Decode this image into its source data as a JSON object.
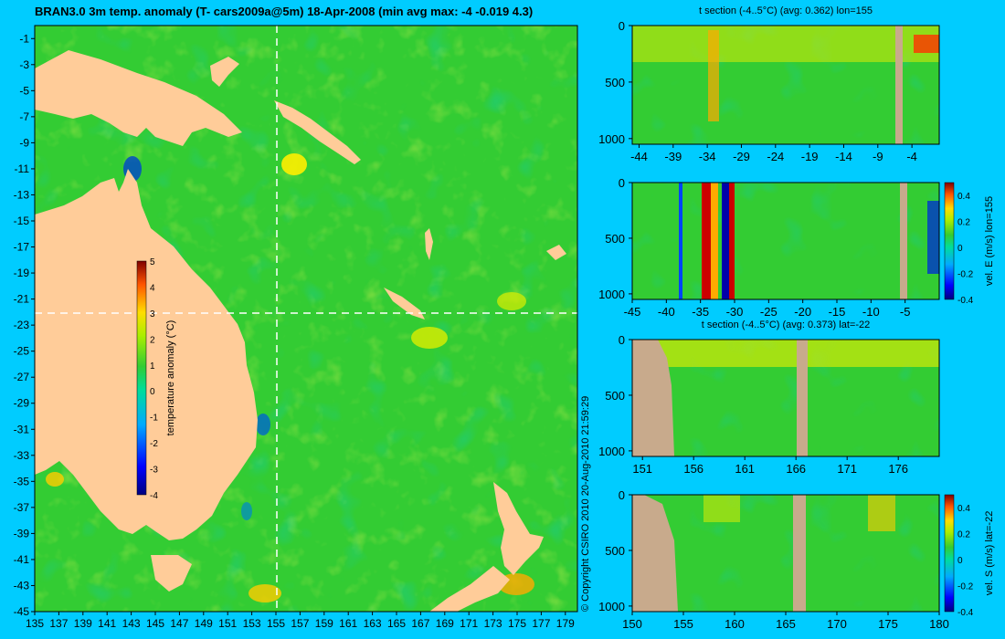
{
  "header": {
    "title": "BRAN3.0 3m temp. anomaly (T- cars2009a@5m) 18-Apr-2008 (min avg max: -4 -0.019 4.3)"
  },
  "copyright": "© Copyright CSIRO 2010   20-Aug-2010 21:59:29",
  "colors": {
    "background": "#00ccff",
    "land": "#ffcc99",
    "section_land": "#c8aa8c",
    "ocean_base": "#33cc33"
  },
  "chart_data": [
    {
      "type": "heatmap",
      "name": "surface-map",
      "title": "BRAN3.0 3m temp. anomaly (T- cars2009a@5m) 18-Apr-2008 (min avg max: -4 -0.019 4.3)",
      "xlim": [
        135,
        180
      ],
      "ylim": [
        -45,
        0
      ],
      "x_ticks": [
        "135",
        "137",
        "139",
        "141",
        "143",
        "145",
        "147",
        "149",
        "151",
        "153",
        "155",
        "157",
        "159",
        "161",
        "163",
        "165",
        "167",
        "169",
        "171",
        "173",
        "175",
        "177",
        "179"
      ],
      "y_ticks": [
        "-1",
        "-3",
        "-5",
        "-7",
        "-9",
        "-11",
        "-13",
        "-15",
        "-17",
        "-19",
        "-21",
        "-23",
        "-25",
        "-27",
        "-29",
        "-31",
        "-33",
        "-35",
        "-37",
        "-39",
        "-41",
        "-43",
        "-45"
      ],
      "section_lines": {
        "lon": 155,
        "lat": -22
      },
      "colorbar": {
        "label": "temperature anomaly (°C)",
        "range": [
          -4,
          5
        ],
        "ticks": [
          "5",
          "4",
          "3",
          "2",
          "1",
          "0",
          "-1",
          "-2",
          "-3",
          "-4"
        ]
      },
      "stats": {
        "min": -4,
        "avg": -0.019,
        "max": 4.3
      }
    },
    {
      "type": "heatmap",
      "name": "t-section-lon155",
      "title": "t section (-4..5°C) (avg: 0.362) lon=155",
      "xlim": [
        -45,
        0
      ],
      "ylim": [
        1050,
        0
      ],
      "x_ticks": [
        "-44",
        "-39",
        "-34",
        "-29",
        "-24",
        "-19",
        "-14",
        "-9",
        "-4"
      ],
      "y_ticks": [
        "0",
        "500",
        "1000"
      ]
    },
    {
      "type": "heatmap",
      "name": "vel-e-section-lon155",
      "title": "",
      "xlim": [
        -45,
        0
      ],
      "ylim": [
        1050,
        0
      ],
      "x_ticks": [
        "-45",
        "-40",
        "-35",
        "-30",
        "-25",
        "-20",
        "-15",
        "-10",
        "-5"
      ],
      "y_ticks": [
        "0",
        "500",
        "1000"
      ],
      "colorbar": {
        "label": "vel. E (m/s) lon=155",
        "range": [
          -0.4,
          0.5
        ],
        "ticks": [
          "0.4",
          "0.2",
          "0",
          "-0.2",
          "-0.4"
        ]
      }
    },
    {
      "type": "heatmap",
      "name": "t-section-lat-22",
      "title": "t section (-4..5°C) (avg: 0.373) lat=-22",
      "xlim": [
        150,
        180
      ],
      "ylim": [
        1050,
        0
      ],
      "x_ticks": [
        "151",
        "156",
        "161",
        "166",
        "171",
        "176"
      ],
      "y_ticks": [
        "0",
        "500",
        "1000"
      ]
    },
    {
      "type": "heatmap",
      "name": "vel-s-section-lat-22",
      "title": "",
      "xlim": [
        150,
        180
      ],
      "ylim": [
        1050,
        0
      ],
      "x_ticks": [
        "150",
        "155",
        "160",
        "165",
        "170",
        "175",
        "180"
      ],
      "y_ticks": [
        "0",
        "500",
        "1000"
      ],
      "colorbar": {
        "label": "vel. S (m/s) lat=-22",
        "range": [
          -0.4,
          0.5
        ],
        "ticks": [
          "0.4",
          "0.2",
          "0",
          "-0.2",
          "-0.4"
        ]
      }
    }
  ]
}
